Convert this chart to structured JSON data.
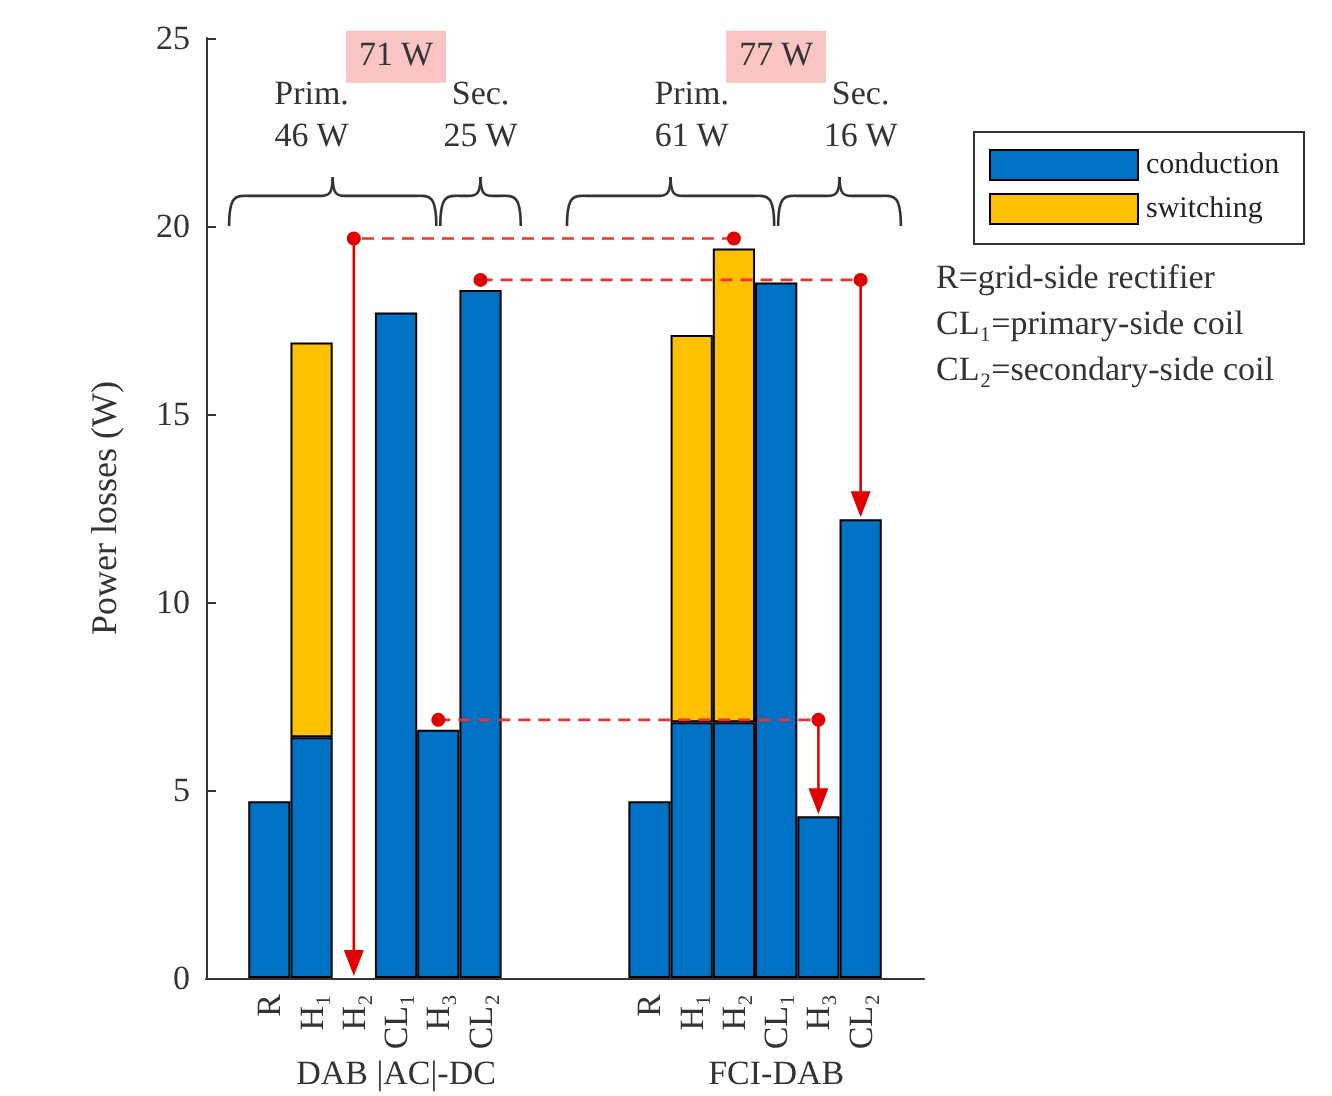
{
  "chart_data": {
    "type": "bar",
    "stacked": true,
    "ylabel": "Power losses (W)",
    "categories": [
      null,
      "R",
      "H₁",
      "H₂",
      "CL₁",
      "H₃",
      "CL₂",
      null,
      null,
      null,
      "R",
      "H₁",
      "H₂",
      "CL₁",
      "H₃",
      "CL₂",
      null
    ],
    "series": [
      {
        "name": "conduction",
        "color": "#0072c6",
        "values": [
          null,
          4.7,
          6.4,
          null,
          17.7,
          6.6,
          18.3,
          null,
          null,
          null,
          4.7,
          6.8,
          6.8,
          18.5,
          4.3,
          12.2,
          null
        ]
      },
      {
        "name": "switching",
        "color": "#ffc000",
        "values": [
          null,
          null,
          10.5,
          null,
          null,
          null,
          null,
          null,
          null,
          null,
          null,
          10.3,
          12.6,
          null,
          null,
          null,
          null
        ]
      }
    ],
    "ylim": [
      0,
      25
    ],
    "yticks": [
      0,
      5,
      10,
      15,
      20,
      25
    ],
    "legend": "top right",
    "annotations": [
      "71 W",
      "Prim.\n46 W",
      "Sec.\n25 W",
      "77 W",
      "Prim.\n61 W",
      "Sec.\n16 W",
      "R=grid-side rectifier",
      "CL₁=primary-side coil",
      "CL₂=secondary-side coil",
      "DAB |AC|-DC",
      "FCI-DAB"
    ]
  }
}
